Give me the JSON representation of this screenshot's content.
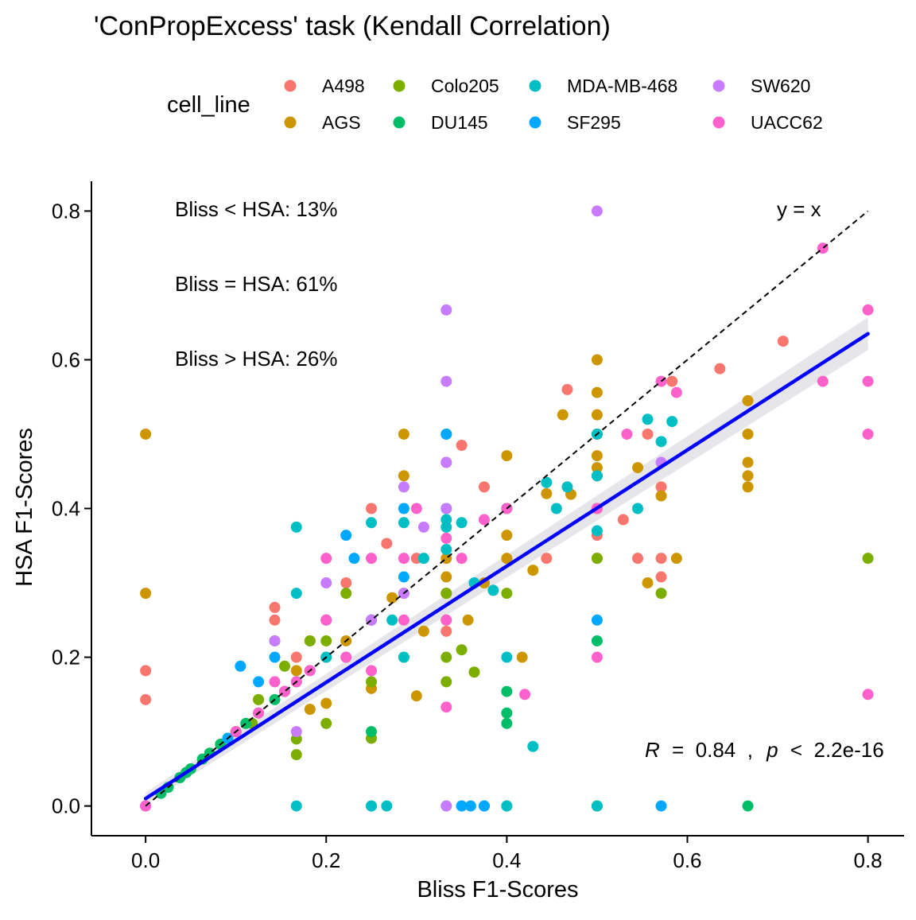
{
  "chart_data": {
    "type": "scatter",
    "title": "'ConPropExcess' task (Kendall Correlation)",
    "xlabel": "Bliss F1-Scores",
    "ylabel": "HSA F1-Scores",
    "xlim": [
      -0.06,
      0.84
    ],
    "ylim": [
      -0.04,
      0.84
    ],
    "x_ticks": [
      0.0,
      0.2,
      0.4,
      0.6,
      0.8
    ],
    "x_tick_labels": [
      "0.0",
      "0.2",
      "0.4",
      "0.6",
      "0.8"
    ],
    "y_ticks": [
      0.0,
      0.2,
      0.4,
      0.6,
      0.8
    ],
    "y_tick_labels": [
      "0.0",
      "0.2",
      "0.4",
      "0.6",
      "0.8"
    ],
    "grid": false,
    "legend": {
      "title": "cell_line",
      "position": "top",
      "entries": [
        {
          "name": "A498",
          "color": "#F8766D"
        },
        {
          "name": "AGS",
          "color": "#CD9600"
        },
        {
          "name": "Colo205",
          "color": "#7CAE00"
        },
        {
          "name": "DU145",
          "color": "#00BE67"
        },
        {
          "name": "MDA-MB-468",
          "color": "#00BFC4"
        },
        {
          "name": "SF295",
          "color": "#00A9FF"
        },
        {
          "name": "SW620",
          "color": "#C77CFF"
        },
        {
          "name": "UACC62",
          "color": "#FF61CC"
        }
      ]
    },
    "annotations": {
      "bliss_lt_hsa": "Bliss < HSA: 13%",
      "bliss_eq_hsa": "Bliss = HSA: 61%",
      "bliss_gt_hsa": "Bliss > HSA: 26%",
      "identity_label": "y = x",
      "stats_r_symbol": "R",
      "stats_r_value": "=  0.84  ,",
      "stats_p_symbol": "p",
      "stats_p_value": "<  2.2e-16"
    },
    "identity_line": {
      "x": [
        0.0,
        0.8
      ],
      "y": [
        0.0,
        0.8
      ],
      "style": "dashed",
      "color": "#000000"
    },
    "regression": {
      "x": [
        0.0,
        0.8
      ],
      "y": [
        0.01,
        0.635
      ],
      "color": "#0000FF",
      "ci_color": "#E5E5EA",
      "ci_halfwidth_left": 0.008,
      "ci_halfwidth_right": 0.022
    },
    "series": [
      {
        "name": "A498",
        "color": "#F8766D",
        "x": [
          0.0,
          0.0,
          0.143,
          0.143,
          0.167,
          0.182,
          0.2,
          0.222,
          0.25,
          0.25,
          0.267,
          0.3,
          0.333,
          0.35,
          0.375,
          0.4,
          0.444,
          0.467,
          0.5,
          0.5,
          0.5,
          0.529,
          0.545,
          0.556,
          0.571,
          0.571,
          0.571,
          0.583,
          0.636,
          0.706,
          0.333
        ],
        "y": [
          0.182,
          0.143,
          0.25,
          0.267,
          0.2,
          0.222,
          0.25,
          0.3,
          0.25,
          0.4,
          0.353,
          0.333,
          0.462,
          0.485,
          0.429,
          0.4,
          0.333,
          0.56,
          0.5,
          0.333,
          0.364,
          0.385,
          0.333,
          0.5,
          0.429,
          0.308,
          0.333,
          0.571,
          0.588,
          0.625,
          0.235
        ]
      },
      {
        "name": "AGS",
        "color": "#CD9600",
        "x": [
          0.0,
          0.0,
          0.1,
          0.125,
          0.154,
          0.167,
          0.182,
          0.2,
          0.2,
          0.222,
          0.25,
          0.25,
          0.273,
          0.286,
          0.286,
          0.286,
          0.3,
          0.308,
          0.333,
          0.333,
          0.333,
          0.357,
          0.375,
          0.4,
          0.4,
          0.4,
          0.4,
          0.417,
          0.429,
          0.444,
          0.462,
          0.471,
          0.5,
          0.5,
          0.5,
          0.5,
          0.5,
          0.5,
          0.5,
          0.545,
          0.556,
          0.571,
          0.588,
          0.667,
          0.667,
          0.667,
          0.667,
          0.667
        ],
        "y": [
          0.5,
          0.286,
          0.1,
          0.143,
          0.154,
          0.182,
          0.13,
          0.2,
          0.138,
          0.222,
          0.25,
          0.158,
          0.28,
          0.286,
          0.5,
          0.444,
          0.148,
          0.235,
          0.333,
          0.286,
          0.308,
          0.25,
          0.3,
          0.4,
          0.333,
          0.364,
          0.471,
          0.2,
          0.317,
          0.42,
          0.526,
          0.419,
          0.6,
          0.556,
          0.526,
          0.471,
          0.455,
          0.444,
          0.4,
          0.455,
          0.3,
          0.417,
          0.333,
          0.545,
          0.5,
          0.462,
          0.444,
          0.429
        ]
      },
      {
        "name": "Colo205",
        "color": "#7CAE00",
        "x": [
          0.083,
          0.1,
          0.118,
          0.125,
          0.143,
          0.154,
          0.167,
          0.167,
          0.182,
          0.2,
          0.2,
          0.222,
          0.25,
          0.25,
          0.25,
          0.286,
          0.333,
          0.333,
          0.333,
          0.333,
          0.35,
          0.364,
          0.4,
          0.4,
          0.5,
          0.5,
          0.5,
          0.5,
          0.5,
          0.571,
          0.8,
          0.5
        ],
        "y": [
          0.083,
          0.1,
          0.111,
          0.143,
          0.222,
          0.188,
          0.09,
          0.069,
          0.222,
          0.111,
          0.222,
          0.286,
          0.091,
          0.167,
          0.25,
          0.2,
          0.167,
          0.2,
          0.25,
          0.286,
          0.21,
          0.18,
          0.286,
          0.4,
          0.5,
          0.4,
          0.333,
          0.444,
          0.0,
          0.286,
          0.333,
          0.0
        ]
      },
      {
        "name": "DU145",
        "color": "#00BE67",
        "x": [
          0.0,
          0.017,
          0.025,
          0.038,
          0.045,
          0.05,
          0.063,
          0.071,
          0.083,
          0.091,
          0.111,
          0.125,
          0.143,
          0.154,
          0.167,
          0.182,
          0.25,
          0.4,
          0.4,
          0.4,
          0.4,
          0.5,
          0.667
        ],
        "y": [
          0.0,
          0.017,
          0.025,
          0.038,
          0.045,
          0.05,
          0.063,
          0.071,
          0.083,
          0.091,
          0.111,
          0.125,
          0.143,
          0.154,
          0.167,
          0.182,
          0.1,
          0.154,
          0.125,
          0.111,
          0.0,
          0.222,
          0.0
        ]
      },
      {
        "name": "MDA-MB-468",
        "color": "#00BFC4",
        "x": [
          0.167,
          0.167,
          0.2,
          0.222,
          0.25,
          0.25,
          0.273,
          0.286,
          0.286,
          0.308,
          0.333,
          0.333,
          0.333,
          0.35,
          0.364,
          0.385,
          0.4,
          0.4,
          0.429,
          0.444,
          0.455,
          0.467,
          0.5,
          0.5,
          0.5,
          0.545,
          0.556,
          0.571,
          0.583,
          0.167,
          0.25,
          0.267,
          0.333,
          0.4,
          0.5
        ],
        "y": [
          0.375,
          0.286,
          0.2,
          0.2,
          0.381,
          0.0,
          0.25,
          0.381,
          0.2,
          0.333,
          0.385,
          0.345,
          0.375,
          0.381,
          0.3,
          0.29,
          0.2,
          0.4,
          0.08,
          0.435,
          0.4,
          0.429,
          0.444,
          0.5,
          0.37,
          0.4,
          0.52,
          0.49,
          0.517,
          0.0,
          0.0,
          0.0,
          0.0,
          0.0,
          0.0
        ]
      },
      {
        "name": "SF295",
        "color": "#00A9FF",
        "x": [
          0.0,
          0.091,
          0.105,
          0.125,
          0.143,
          0.2,
          0.222,
          0.231,
          0.25,
          0.286,
          0.286,
          0.333,
          0.333,
          0.333,
          0.35,
          0.375,
          0.5,
          0.571,
          0.35,
          0.36,
          0.375
        ],
        "y": [
          0.0,
          0.091,
          0.188,
          0.167,
          0.2,
          0.25,
          0.364,
          0.333,
          0.25,
          0.4,
          0.308,
          0.5,
          0.5,
          0.4,
          0.0,
          0.0,
          0.25,
          0.0,
          0.0,
          0.0,
          0.0
        ]
      },
      {
        "name": "SW620",
        "color": "#C77CFF",
        "x": [
          0.0,
          0.143,
          0.167,
          0.2,
          0.25,
          0.286,
          0.286,
          0.308,
          0.333,
          0.333,
          0.333,
          0.333,
          0.333,
          0.5,
          0.571
        ],
        "y": [
          0.0,
          0.222,
          0.1,
          0.3,
          0.25,
          0.286,
          0.429,
          0.375,
          0.667,
          0.571,
          0.462,
          0.4,
          0.0,
          0.8,
          0.462
        ]
      },
      {
        "name": "UACC62",
        "color": "#FF61CC",
        "x": [
          0.0,
          0.1,
          0.125,
          0.143,
          0.154,
          0.167,
          0.182,
          0.2,
          0.2,
          0.222,
          0.25,
          0.25,
          0.286,
          0.286,
          0.3,
          0.333,
          0.333,
          0.333,
          0.35,
          0.375,
          0.4,
          0.5,
          0.5,
          0.533,
          0.571,
          0.588,
          0.75,
          0.75,
          0.8,
          0.8,
          0.8,
          0.8,
          0.42
        ],
        "y": [
          0.0,
          0.1,
          0.125,
          0.167,
          0.154,
          0.167,
          0.182,
          0.25,
          0.333,
          0.2,
          0.333,
          0.182,
          0.333,
          0.25,
          0.4,
          0.25,
          0.133,
          0.36,
          0.333,
          0.385,
          0.4,
          0.2,
          0.4,
          0.5,
          0.571,
          0.556,
          0.75,
          0.571,
          0.667,
          0.571,
          0.5,
          0.15,
          0.15
        ]
      }
    ]
  }
}
